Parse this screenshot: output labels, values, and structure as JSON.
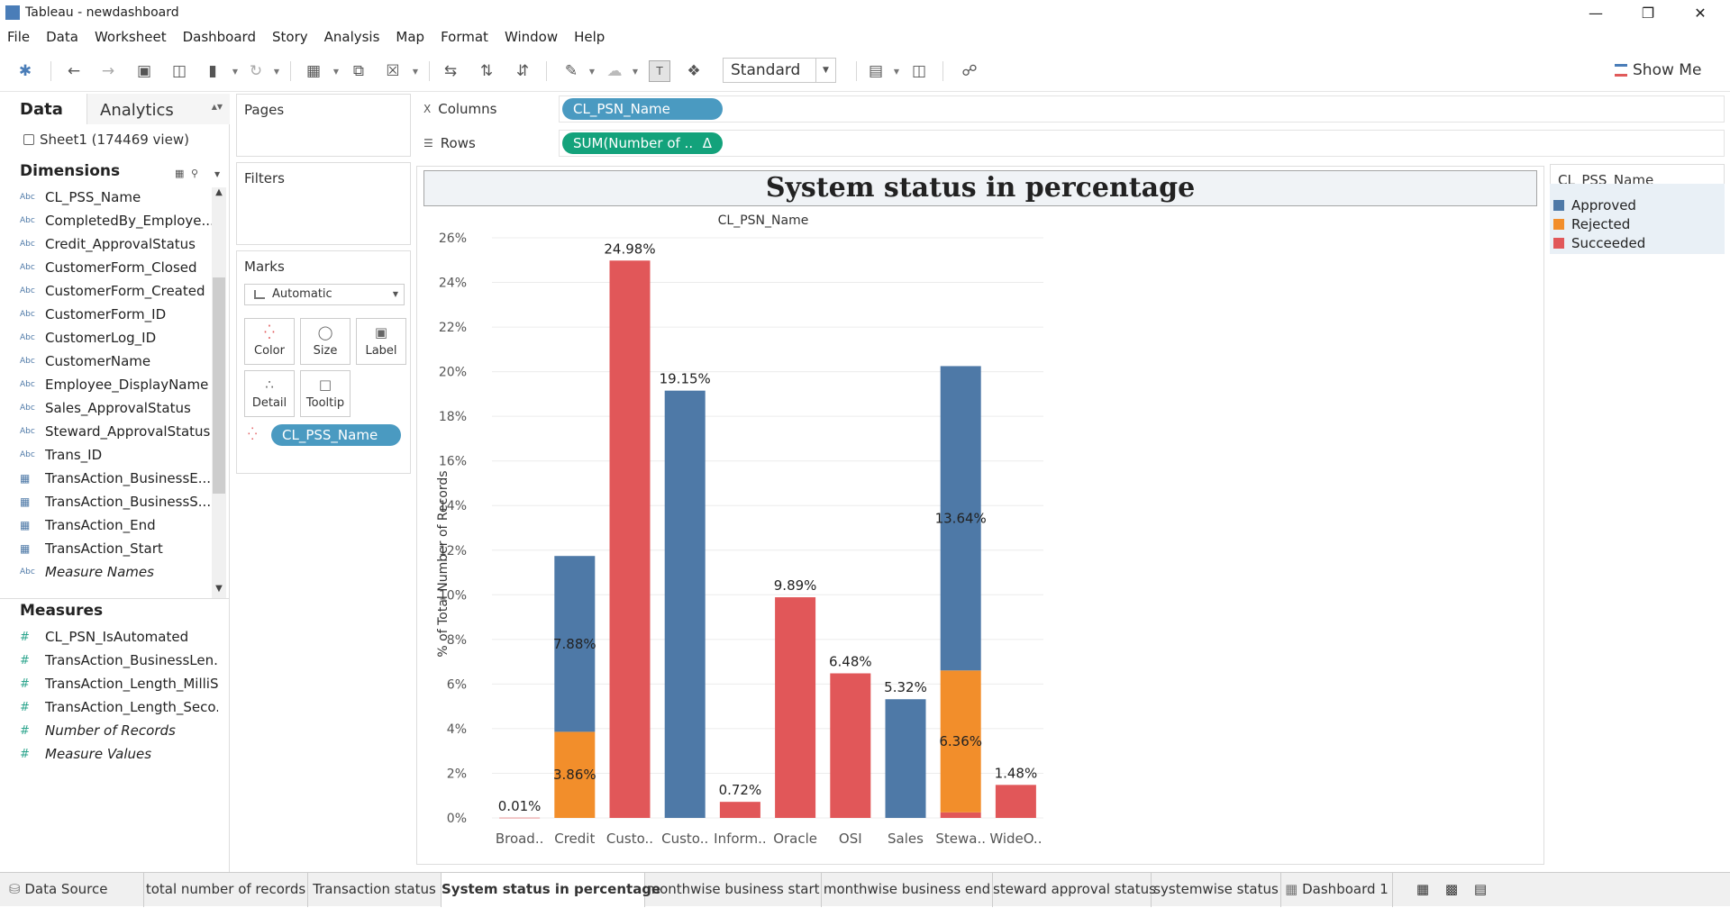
{
  "window": {
    "title": "Tableau - newdashboard"
  },
  "menu": [
    "File",
    "Data",
    "Worksheet",
    "Dashboard",
    "Story",
    "Analysis",
    "Map",
    "Format",
    "Window",
    "Help"
  ],
  "toolbar": {
    "fit": "Standard",
    "show_me": "Show Me"
  },
  "left": {
    "tab_data": "Data",
    "tab_analytics": "Analytics",
    "source": "Sheet1 (174469 view)",
    "dimensions_title": "Dimensions",
    "measures_title": "Measures",
    "dimensions": [
      "CL_PSS_Name",
      "CompletedBy_Employe...",
      "Credit_ApprovalStatus",
      "CustomerForm_Closed",
      "CustomerForm_Created",
      "CustomerForm_ID",
      "CustomerLog_ID",
      "CustomerName",
      "Employee_DisplayName",
      "Sales_ApprovalStatus",
      "Steward_ApprovalStatus",
      "Trans_ID",
      "TransAction_BusinessE...",
      "TransAction_BusinessS...",
      "TransAction_End",
      "TransAction_Start",
      "Measure Names"
    ],
    "measures": [
      "CL_PSN_IsAutomated",
      "TransAction_BusinessLen...",
      "TransAction_Length_MilliS...",
      "TransAction_Length_Seco...",
      "Number of Records",
      "Measure Values"
    ],
    "type_abc": "Abc"
  },
  "cards": {
    "pages": "Pages",
    "filters": "Filters",
    "marks": "Marks",
    "marks_type": "Automatic",
    "buttons": [
      "Color",
      "Size",
      "Label",
      "Detail",
      "Tooltip"
    ],
    "color_pill": "CL_PSS_Name"
  },
  "shelves": {
    "columns_label": "Columns",
    "rows_label": "Rows",
    "columns_pill": "CL_PSN_Name",
    "rows_pill": "SUM(Number of ..",
    "rows_pill_delta": "Δ"
  },
  "legend": {
    "title": "CL_PSS_Name",
    "items": [
      {
        "name": "Approved",
        "color": "#4e79a7"
      },
      {
        "name": "Rejected",
        "color": "#f28e2b"
      },
      {
        "name": "Succeeded",
        "color": "#e15759"
      }
    ]
  },
  "chart_data": {
    "type": "bar",
    "stacked": true,
    "title": "System status in percentage",
    "xlabel": "CL_PSN_Name",
    "ylabel": "% of Total Number of Records",
    "ylim": [
      0,
      26
    ],
    "yticks": [
      "0%",
      "2%",
      "4%",
      "6%",
      "8%",
      "10%",
      "12%",
      "14%",
      "16%",
      "18%",
      "20%",
      "22%",
      "24%",
      "26%"
    ],
    "categories": [
      "Broad..",
      "Credit",
      "Custo..",
      "Custo..",
      "Inform..",
      "Oracle",
      "OSI",
      "Sales",
      "Stewa..",
      "WideO.."
    ],
    "series": [
      {
        "name": "Approved",
        "color": "#4e79a7",
        "values": [
          0,
          7.88,
          0,
          19.15,
          0,
          0,
          0,
          5.32,
          13.64,
          0
        ]
      },
      {
        "name": "Rejected",
        "color": "#f28e2b",
        "values": [
          0,
          3.86,
          0,
          0,
          0,
          0,
          0,
          0,
          6.36,
          0
        ]
      },
      {
        "name": "Succeeded",
        "color": "#e15759",
        "values": [
          0.01,
          0,
          24.98,
          0,
          0.72,
          9.89,
          6.48,
          0,
          0.25,
          1.48
        ]
      }
    ],
    "data_labels": [
      {
        "category": 0,
        "series": "Succeeded",
        "text": "0.01%"
      },
      {
        "category": 1,
        "series": "Rejected",
        "text": "3.86%"
      },
      {
        "category": 1,
        "series": "Approved",
        "text": "7.88%"
      },
      {
        "category": 2,
        "series": "Succeeded",
        "text": "24.98%"
      },
      {
        "category": 3,
        "series": "Approved",
        "text": "19.15%"
      },
      {
        "category": 4,
        "series": "Succeeded",
        "text": "0.72%"
      },
      {
        "category": 5,
        "series": "Succeeded",
        "text": "9.89%"
      },
      {
        "category": 6,
        "series": "Succeeded",
        "text": "6.48%"
      },
      {
        "category": 7,
        "series": "Approved",
        "text": "5.32%"
      },
      {
        "category": 8,
        "series": "Rejected",
        "text": "6.36%"
      },
      {
        "category": 8,
        "series": "Approved",
        "text": "13.64%"
      },
      {
        "category": 9,
        "series": "Succeeded",
        "text": "1.48%"
      }
    ],
    "legend_position": "right"
  },
  "sheet_tabs": [
    {
      "label": "Data Source"
    },
    {
      "label": "total number of records"
    },
    {
      "label": "Transaction status"
    },
    {
      "label": "System status in percentage",
      "active": true
    },
    {
      "label": "monthwise business start"
    },
    {
      "label": "monthwise business end"
    },
    {
      "label": "steward approval status"
    },
    {
      "label": "systemwise status"
    },
    {
      "label": "Dashboard 1"
    }
  ]
}
